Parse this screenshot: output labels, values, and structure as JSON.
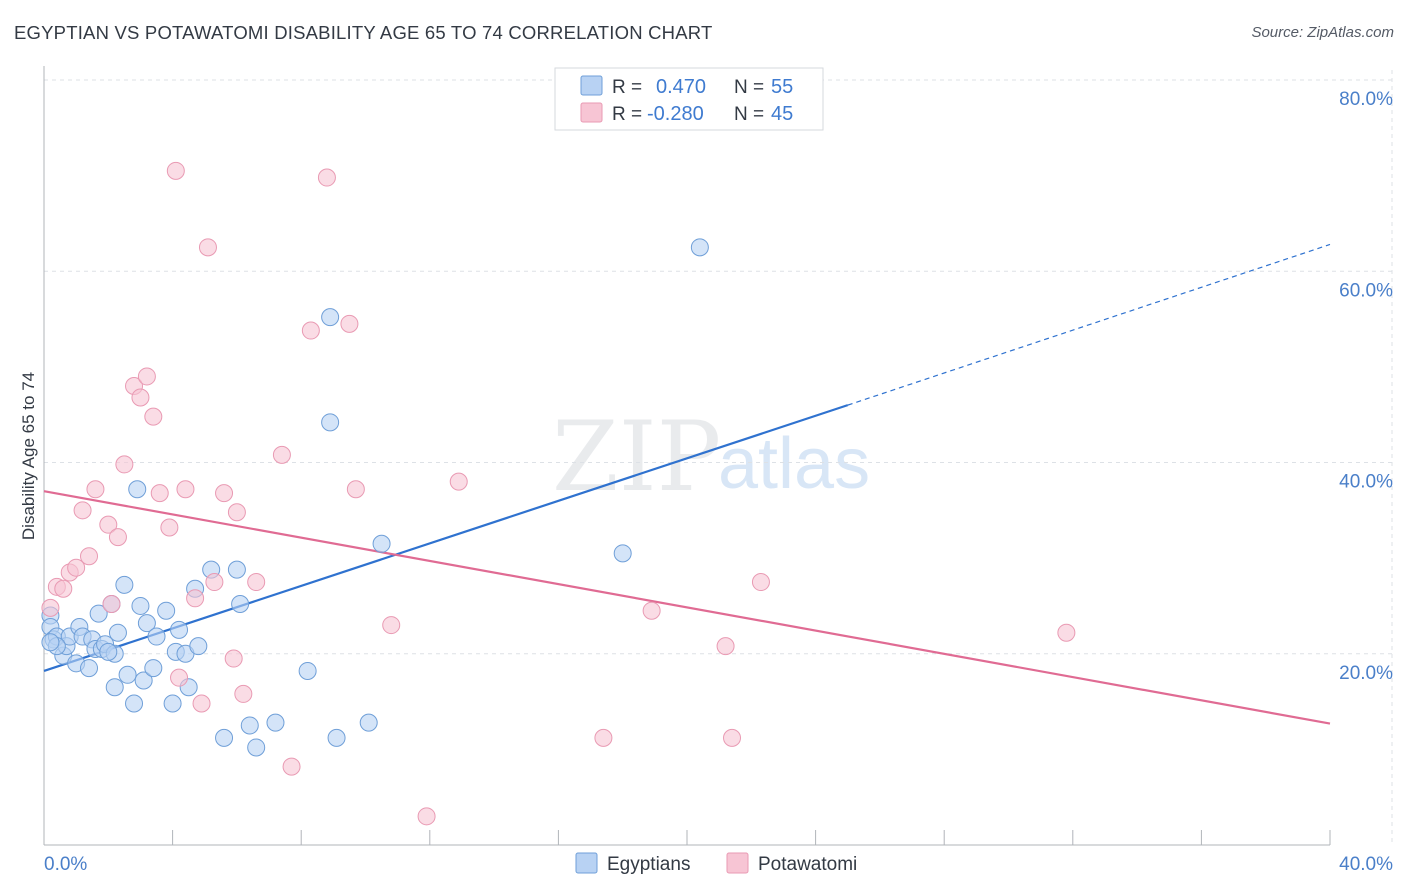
{
  "title": "EGYPTIAN VS POTAWATOMI DISABILITY AGE 65 TO 74 CORRELATION CHART",
  "source": "Source: ZipAtlas.com",
  "watermark": {
    "zip": "ZIP",
    "atlas": "atlas"
  },
  "colors": {
    "blue_fill": "#b8d2f3",
    "blue_stroke": "#6f9fd8",
    "blue_line": "#2f72cf",
    "pink_fill": "#f7c5d4",
    "pink_stroke": "#e99ab3",
    "pink_line": "#e06b93",
    "grid": "#dde1e6",
    "axis": "#b0b4ba"
  },
  "legend": {
    "rows": [
      {
        "r_label": "R =",
        "r_value": "0.470",
        "n_label": "N =",
        "n_value": "55"
      },
      {
        "r_label": "R =",
        "r_value": "-0.280",
        "n_label": "N =",
        "n_value": "45"
      }
    ]
  },
  "bottom_legend": [
    "Egyptians",
    "Potawatomi"
  ],
  "chart_data": {
    "type": "scatter",
    "title": "EGYPTIAN VS POTAWATOMI DISABILITY AGE 65 TO 74 CORRELATION CHART",
    "xlabel": "",
    "ylabel": "Disability Age 65 to 74",
    "xlim": [
      0,
      40
    ],
    "ylim": [
      0,
      80
    ],
    "x_tick_labels": [
      "0.0%",
      "40.0%"
    ],
    "y_ticks": [
      20,
      40,
      60,
      80
    ],
    "y_tick_labels": [
      "20.0%",
      "40.0%",
      "60.0%",
      "80.0%"
    ],
    "series": [
      {
        "name": "Egyptians",
        "r": 0.47,
        "n": 55,
        "trend": {
          "x0": 0,
          "y0": 18.2,
          "x1": 25,
          "y1": 46.0,
          "dash_x1": 40,
          "dash_y1": 62.8
        },
        "points": [
          [
            0.2,
            24.0
          ],
          [
            0.2,
            22.8
          ],
          [
            0.3,
            21.5
          ],
          [
            0.4,
            21.8
          ],
          [
            0.6,
            19.8
          ],
          [
            0.7,
            20.8
          ],
          [
            0.8,
            21.8
          ],
          [
            1.0,
            19.0
          ],
          [
            1.1,
            22.8
          ],
          [
            1.2,
            21.8
          ],
          [
            1.4,
            18.5
          ],
          [
            1.5,
            21.5
          ],
          [
            1.6,
            20.5
          ],
          [
            1.7,
            24.2
          ],
          [
            1.8,
            20.5
          ],
          [
            1.9,
            21.0
          ],
          [
            2.1,
            25.2
          ],
          [
            2.2,
            20.0
          ],
          [
            2.3,
            22.2
          ],
          [
            2.5,
            27.2
          ],
          [
            2.6,
            17.8
          ],
          [
            2.2,
            16.5
          ],
          [
            2.8,
            14.8
          ],
          [
            3.0,
            25.0
          ],
          [
            3.1,
            17.2
          ],
          [
            3.2,
            23.2
          ],
          [
            3.4,
            18.5
          ],
          [
            3.5,
            21.8
          ],
          [
            3.8,
            24.5
          ],
          [
            4.0,
            14.8
          ],
          [
            4.1,
            20.2
          ],
          [
            4.2,
            22.5
          ],
          [
            4.4,
            20.0
          ],
          [
            4.5,
            16.5
          ],
          [
            4.7,
            26.8
          ],
          [
            4.8,
            20.8
          ],
          [
            5.2,
            28.8
          ],
          [
            5.6,
            11.2
          ],
          [
            6.0,
            28.8
          ],
          [
            6.1,
            25.2
          ],
          [
            6.4,
            12.5
          ],
          [
            6.6,
            10.2
          ],
          [
            7.2,
            12.8
          ],
          [
            8.2,
            18.2
          ],
          [
            8.9,
            55.2
          ],
          [
            8.9,
            44.2
          ],
          [
            9.1,
            11.2
          ],
          [
            10.1,
            12.8
          ],
          [
            10.5,
            31.5
          ],
          [
            18.0,
            30.5
          ],
          [
            20.4,
            62.5
          ],
          [
            2.9,
            37.2
          ],
          [
            0.4,
            20.8
          ],
          [
            2.0,
            20.2
          ],
          [
            0.2,
            21.2
          ]
        ]
      },
      {
        "name": "Potawatomi",
        "r": -0.28,
        "n": 45,
        "trend": {
          "x0": 0,
          "y0": 37.0,
          "x1": 40,
          "y1": 12.7
        },
        "points": [
          [
            0.2,
            24.8
          ],
          [
            0.4,
            27.0
          ],
          [
            0.6,
            26.8
          ],
          [
            0.8,
            28.5
          ],
          [
            1.0,
            29.0
          ],
          [
            1.2,
            35.0
          ],
          [
            1.4,
            30.2
          ],
          [
            1.6,
            37.2
          ],
          [
            2.0,
            33.5
          ],
          [
            2.1,
            25.2
          ],
          [
            2.3,
            32.2
          ],
          [
            2.5,
            39.8
          ],
          [
            2.8,
            48.0
          ],
          [
            3.0,
            46.8
          ],
          [
            3.2,
            49.0
          ],
          [
            3.4,
            44.8
          ],
          [
            3.6,
            36.8
          ],
          [
            3.9,
            33.2
          ],
          [
            4.2,
            17.5
          ],
          [
            4.4,
            37.2
          ],
          [
            4.7,
            25.8
          ],
          [
            4.9,
            14.8
          ],
          [
            5.1,
            62.5
          ],
          [
            5.3,
            27.5
          ],
          [
            5.6,
            36.8
          ],
          [
            5.9,
            19.5
          ],
          [
            6.0,
            34.8
          ],
          [
            6.2,
            15.8
          ],
          [
            6.6,
            27.5
          ],
          [
            7.4,
            40.8
          ],
          [
            7.7,
            8.2
          ],
          [
            8.3,
            53.8
          ],
          [
            8.8,
            69.8
          ],
          [
            9.5,
            54.5
          ],
          [
            9.7,
            37.2
          ],
          [
            10.8,
            23.0
          ],
          [
            11.9,
            3.0
          ],
          [
            12.9,
            38.0
          ],
          [
            17.4,
            11.2
          ],
          [
            18.9,
            24.5
          ],
          [
            21.2,
            20.8
          ],
          [
            21.4,
            11.2
          ],
          [
            22.3,
            27.5
          ],
          [
            31.8,
            22.2
          ],
          [
            4.1,
            70.5
          ]
        ]
      }
    ]
  }
}
